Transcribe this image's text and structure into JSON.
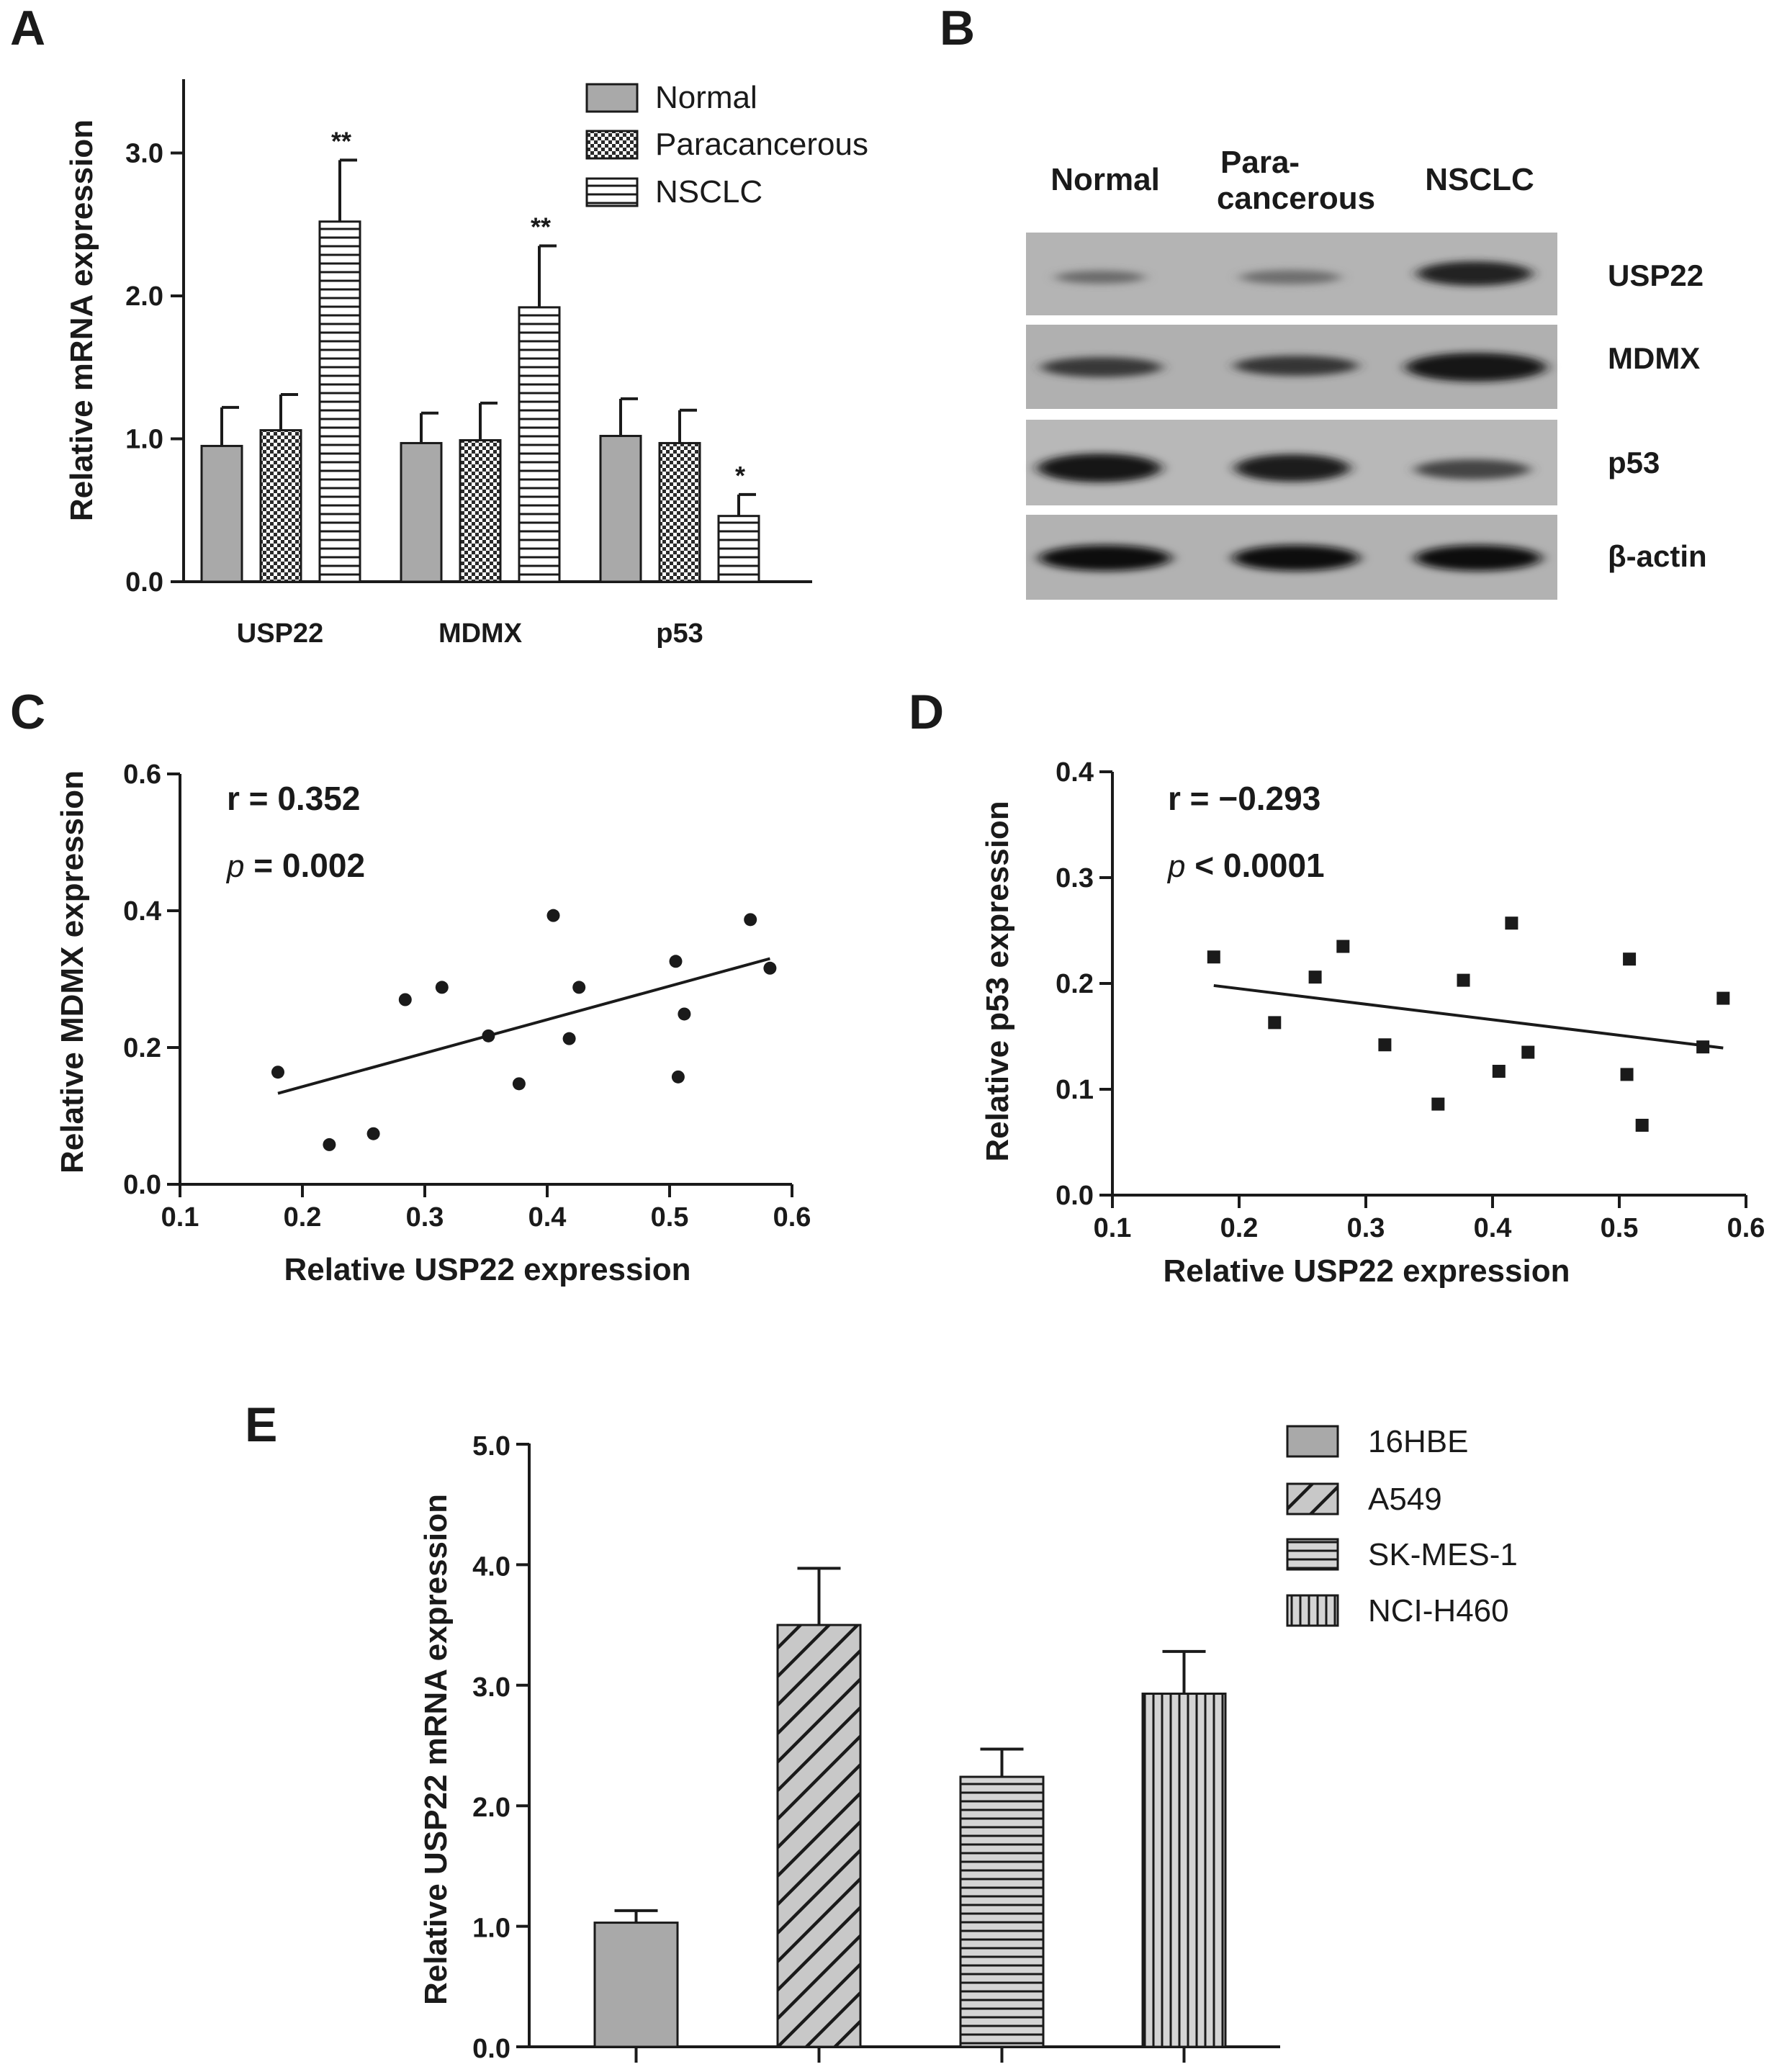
{
  "panels": {
    "A": "A",
    "B": "B",
    "C": "C",
    "D": "D",
    "E": "E"
  },
  "chart_data": [
    {
      "id": "A",
      "type": "bar",
      "title": "",
      "xlabel": "",
      "ylabel": "Relative mRNA expression",
      "ylim": [
        0,
        3.5
      ],
      "yticks": [
        0.0,
        1.0,
        2.0,
        3.0
      ],
      "ytick_labels": [
        "0.0",
        "1.0",
        "2.0",
        "3.0"
      ],
      "categories": [
        "USP22",
        "MDMX",
        "p53"
      ],
      "series": [
        {
          "name": "Normal",
          "values": [
            0.95,
            0.97,
            1.02
          ],
          "errors": [
            0.27,
            0.21,
            0.26
          ],
          "annotations": [
            "",
            "",
            ""
          ]
        },
        {
          "name": "Paracancerous",
          "values": [
            1.06,
            0.99,
            0.97
          ],
          "errors": [
            0.25,
            0.26,
            0.23
          ],
          "annotations": [
            "",
            "",
            ""
          ]
        },
        {
          "name": "NSCLC",
          "values": [
            2.52,
            1.92,
            0.46
          ],
          "errors": [
            0.43,
            0.43,
            0.15
          ],
          "annotations": [
            "**",
            "**",
            "*"
          ]
        }
      ],
      "legend": "top-right"
    },
    {
      "id": "C",
      "type": "scatter",
      "xlabel": "Relative USP22 expression",
      "ylabel": "Relative MDMX expression",
      "xlim": [
        0.1,
        0.6
      ],
      "ylim": [
        0.0,
        0.6
      ],
      "xticks": [
        "0.1",
        "0.2",
        "0.3",
        "0.4",
        "0.5",
        "0.6"
      ],
      "yticks": [
        "0.0",
        "0.2",
        "0.4",
        "0.6"
      ],
      "points": [
        [
          0.18,
          0.164
        ],
        [
          0.222,
          0.058
        ],
        [
          0.258,
          0.074
        ],
        [
          0.284,
          0.27
        ],
        [
          0.314,
          0.288
        ],
        [
          0.352,
          0.217
        ],
        [
          0.377,
          0.147
        ],
        [
          0.405,
          0.393
        ],
        [
          0.418,
          0.213
        ],
        [
          0.426,
          0.288
        ],
        [
          0.505,
          0.326
        ],
        [
          0.507,
          0.157
        ],
        [
          0.512,
          0.249
        ],
        [
          0.566,
          0.387
        ],
        [
          0.582,
          0.316
        ]
      ],
      "marker": "circle",
      "fit_line": [
        [
          0.18,
          0.133
        ],
        [
          0.582,
          0.33
        ]
      ],
      "stats": {
        "r_label": "r = 0.352",
        "p_symbol": "p",
        "p_value": " = 0.002"
      }
    },
    {
      "id": "D",
      "type": "scatter",
      "xlabel": "Relative USP22 expression",
      "ylabel": "Relative p53 expression",
      "xlim": [
        0.1,
        0.6
      ],
      "ylim": [
        0.0,
        0.4
      ],
      "xticks": [
        "0.1",
        "0.2",
        "0.3",
        "0.4",
        "0.5",
        "0.6"
      ],
      "yticks": [
        "0.0",
        "0.1",
        "0.2",
        "0.3",
        "0.4"
      ],
      "points": [
        [
          0.18,
          0.225
        ],
        [
          0.228,
          0.163
        ],
        [
          0.26,
          0.206
        ],
        [
          0.282,
          0.235
        ],
        [
          0.315,
          0.142
        ],
        [
          0.357,
          0.086
        ],
        [
          0.377,
          0.203
        ],
        [
          0.405,
          0.117
        ],
        [
          0.415,
          0.257
        ],
        [
          0.428,
          0.135
        ],
        [
          0.506,
          0.114
        ],
        [
          0.508,
          0.223
        ],
        [
          0.518,
          0.066
        ],
        [
          0.566,
          0.14
        ],
        [
          0.582,
          0.186
        ]
      ],
      "marker": "square",
      "fit_line": [
        [
          0.18,
          0.198
        ],
        [
          0.582,
          0.139
        ]
      ],
      "stats": {
        "r_label": "r = −0.293",
        "p_symbol": "p",
        "p_value": " < 0.0001"
      }
    },
    {
      "id": "E",
      "type": "bar",
      "xlabel": "",
      "ylabel": "Relative USP22 mRNA expression",
      "ylim": [
        0,
        5.0
      ],
      "yticks": [
        0.0,
        1.0,
        2.0,
        3.0,
        4.0,
        5.0
      ],
      "ytick_labels": [
        "0.0",
        "1.0",
        "2.0",
        "3.0",
        "4.0",
        "5.0"
      ],
      "categories": [
        "16HBE",
        "A549",
        "SK-MES-1",
        "NCI-H460"
      ],
      "values": [
        1.03,
        3.5,
        2.24,
        2.93
      ],
      "errors": [
        0.1,
        0.47,
        0.23,
        0.35
      ],
      "legend": "top-right"
    }
  ],
  "blot": {
    "columns": [
      "Normal",
      "Para-",
      "cancerous",
      "NSCLC"
    ],
    "rows": [
      "USP22",
      "MDMX",
      "p53",
      "β-actin"
    ]
  },
  "colors": {
    "bar_fill": "#a9a9a9",
    "hatch_fill": "#cfcfcf",
    "stroke": "#1a1a1a",
    "blot_bg": "#b4b4b4"
  }
}
